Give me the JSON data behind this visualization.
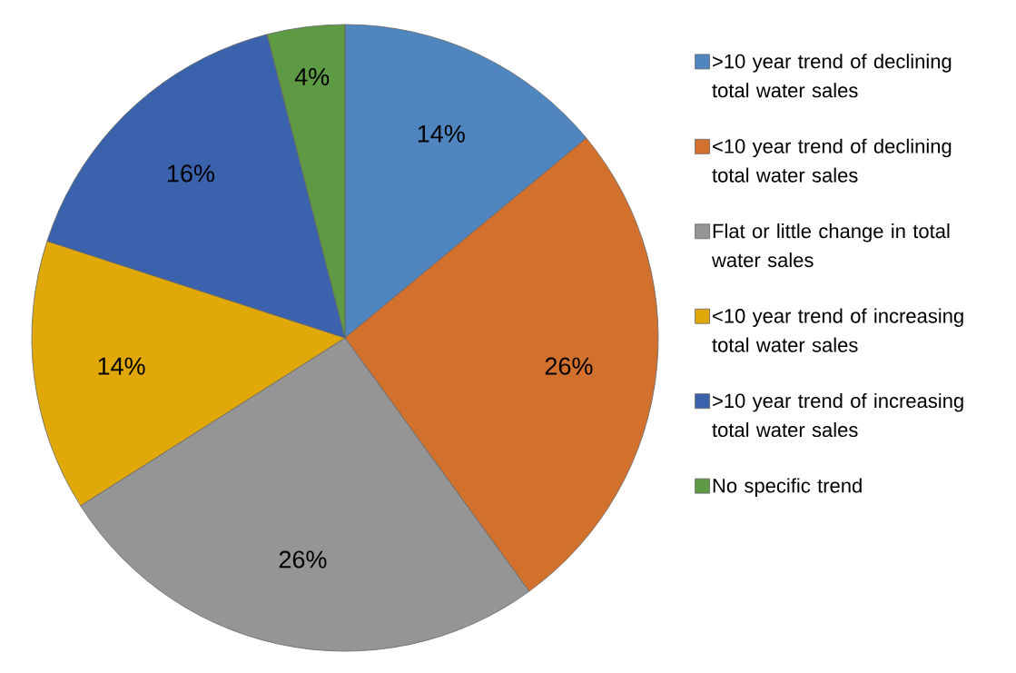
{
  "chart_data": {
    "type": "pie",
    "categories": [
      ">10 year trend of declining total water sales",
      "<10 year trend of declining total water sales",
      "Flat or little change in total water sales",
      "<10 year trend of increasing total water sales",
      ">10 year trend of increasing total water sales",
      "No specific trend"
    ],
    "values": [
      14,
      26,
      26,
      14,
      16,
      4
    ],
    "value_labels": [
      "14%",
      "26%",
      "26%",
      "14%",
      "16%",
      "4%"
    ],
    "colors": [
      "#4f86c0",
      "#d2702e",
      "#959595",
      "#e0a808",
      "#3b62ad",
      "#5e9a44"
    ],
    "legend": "right"
  }
}
